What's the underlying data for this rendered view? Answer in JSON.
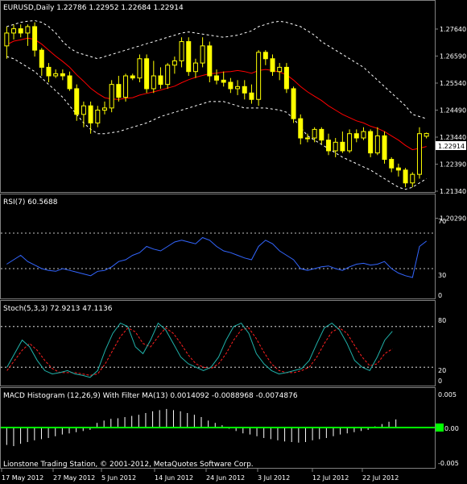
{
  "price_panel": {
    "title": "EURUSD,Daily  1.22786 1.22952 1.22684 1.22914",
    "current_price": "1.22914",
    "price_labels": [
      "1.27640",
      "1.26590",
      "1.25540",
      "1.24490",
      "1.23440",
      "1.22390",
      "1.21340",
      "1.20290"
    ]
  },
  "rsi_panel": {
    "title": "RSI(7) 60.5688",
    "levels": [
      "70",
      "30",
      "0"
    ]
  },
  "stoch_panel": {
    "title": "Stoch(5,3,3) 72.9213 47.1136",
    "levels": [
      "80",
      "20",
      "0"
    ]
  },
  "macd_panel": {
    "title": "MACD Histogram (12,26,9) With Filter MA(13) 0.0014092 -0.0088968 -0.0074876",
    "levels": [
      "0.005",
      "0.00",
      "-0.005"
    ],
    "footer": "Lionstone Trading Station, © 2001-2012, MetaQuotes Software Corp."
  },
  "date_labels": [
    "17 May 2012",
    "27 May 2012",
    "5 Jun 2012",
    "14 Jun 2012",
    "24 Jun 2012",
    "3 Jul 2012",
    "12 Jul 2012",
    "22 Jul 2012"
  ],
  "colors": {
    "bull": "#ffff00",
    "bear": "#ffff00",
    "ma": "#ff0000",
    "bands": "#ffffff",
    "rsi": "#3366ff",
    "stoch_main": "#20b2aa",
    "stoch_signal": "#ff2020",
    "macd_hist": "#ffffff",
    "macd_signal": "#00ff00"
  },
  "chart_data": [
    {
      "type": "candlestick",
      "title": "EURUSD,Daily  1.22786 1.22952 1.22684 1.22914",
      "ylim": [
        1.2029,
        1.2869
      ],
      "candles": [
        {
          "o": 1.27,
          "h": 1.279,
          "l": 1.264,
          "c": 1.276
        },
        {
          "o": 1.276,
          "h": 1.28,
          "l": 1.273,
          "c": 1.278
        },
        {
          "o": 1.278,
          "h": 1.28,
          "l": 1.274,
          "c": 1.276
        },
        {
          "o": 1.276,
          "h": 1.28,
          "l": 1.27,
          "c": 1.279
        },
        {
          "o": 1.279,
          "h": 1.281,
          "l": 1.265,
          "c": 1.268
        },
        {
          "o": 1.268,
          "h": 1.269,
          "l": 1.256,
          "c": 1.26
        },
        {
          "o": 1.26,
          "h": 1.262,
          "l": 1.253,
          "c": 1.256
        },
        {
          "o": 1.256,
          "h": 1.259,
          "l": 1.255,
          "c": 1.257
        },
        {
          "o": 1.257,
          "h": 1.259,
          "l": 1.254,
          "c": 1.256
        },
        {
          "o": 1.256,
          "h": 1.258,
          "l": 1.249,
          "c": 1.25
        },
        {
          "o": 1.25,
          "h": 1.252,
          "l": 1.235,
          "c": 1.238
        },
        {
          "o": 1.238,
          "h": 1.244,
          "l": 1.232,
          "c": 1.242
        },
        {
          "o": 1.242,
          "h": 1.244,
          "l": 1.229,
          "c": 1.234
        },
        {
          "o": 1.234,
          "h": 1.242,
          "l": 1.232,
          "c": 1.24
        },
        {
          "o": 1.24,
          "h": 1.244,
          "l": 1.238,
          "c": 1.241
        },
        {
          "o": 1.241,
          "h": 1.254,
          "l": 1.239,
          "c": 1.252
        },
        {
          "o": 1.252,
          "h": 1.256,
          "l": 1.244,
          "c": 1.246
        },
        {
          "o": 1.246,
          "h": 1.257,
          "l": 1.244,
          "c": 1.256
        },
        {
          "o": 1.256,
          "h": 1.257,
          "l": 1.254,
          "c": 1.255
        },
        {
          "o": 1.255,
          "h": 1.266,
          "l": 1.253,
          "c": 1.264
        },
        {
          "o": 1.264,
          "h": 1.266,
          "l": 1.248,
          "c": 1.25
        },
        {
          "o": 1.25,
          "h": 1.263,
          "l": 1.248,
          "c": 1.256
        },
        {
          "o": 1.256,
          "h": 1.26,
          "l": 1.25,
          "c": 1.252
        },
        {
          "o": 1.252,
          "h": 1.262,
          "l": 1.25,
          "c": 1.261
        },
        {
          "o": 1.261,
          "h": 1.265,
          "l": 1.257,
          "c": 1.263
        },
        {
          "o": 1.263,
          "h": 1.274,
          "l": 1.26,
          "c": 1.272
        },
        {
          "o": 1.272,
          "h": 1.274,
          "l": 1.256,
          "c": 1.258
        },
        {
          "o": 1.258,
          "h": 1.264,
          "l": 1.255,
          "c": 1.262
        },
        {
          "o": 1.262,
          "h": 1.274,
          "l": 1.26,
          "c": 1.27
        },
        {
          "o": 1.27,
          "h": 1.272,
          "l": 1.253,
          "c": 1.256
        },
        {
          "o": 1.256,
          "h": 1.259,
          "l": 1.252,
          "c": 1.254
        },
        {
          "o": 1.254,
          "h": 1.258,
          "l": 1.251,
          "c": 1.253
        },
        {
          "o": 1.253,
          "h": 1.255,
          "l": 1.248,
          "c": 1.25
        },
        {
          "o": 1.25,
          "h": 1.254,
          "l": 1.247,
          "c": 1.251
        },
        {
          "o": 1.251,
          "h": 1.254,
          "l": 1.245,
          "c": 1.248
        },
        {
          "o": 1.248,
          "h": 1.252,
          "l": 1.243,
          "c": 1.245
        },
        {
          "o": 1.245,
          "h": 1.268,
          "l": 1.242,
          "c": 1.267
        },
        {
          "o": 1.267,
          "h": 1.268,
          "l": 1.261,
          "c": 1.264
        },
        {
          "o": 1.264,
          "h": 1.266,
          "l": 1.256,
          "c": 1.258
        },
        {
          "o": 1.258,
          "h": 1.262,
          "l": 1.254,
          "c": 1.26
        },
        {
          "o": 1.26,
          "h": 1.262,
          "l": 1.248,
          "c": 1.25
        },
        {
          "o": 1.25,
          "h": 1.251,
          "l": 1.234,
          "c": 1.236
        },
        {
          "o": 1.236,
          "h": 1.238,
          "l": 1.224,
          "c": 1.227
        },
        {
          "o": 1.227,
          "h": 1.229,
          "l": 1.225,
          "c": 1.227
        },
        {
          "o": 1.227,
          "h": 1.232,
          "l": 1.225,
          "c": 1.231
        },
        {
          "o": 1.231,
          "h": 1.232,
          "l": 1.224,
          "c": 1.226
        },
        {
          "o": 1.226,
          "h": 1.229,
          "l": 1.219,
          "c": 1.221
        },
        {
          "o": 1.221,
          "h": 1.227,
          "l": 1.218,
          "c": 1.225
        },
        {
          "o": 1.225,
          "h": 1.23,
          "l": 1.22,
          "c": 1.221
        },
        {
          "o": 1.221,
          "h": 1.231,
          "l": 1.22,
          "c": 1.229
        },
        {
          "o": 1.229,
          "h": 1.231,
          "l": 1.225,
          "c": 1.227
        },
        {
          "o": 1.227,
          "h": 1.232,
          "l": 1.226,
          "c": 1.23
        },
        {
          "o": 1.23,
          "h": 1.231,
          "l": 1.218,
          "c": 1.22
        },
        {
          "o": 1.22,
          "h": 1.232,
          "l": 1.219,
          "c": 1.228
        },
        {
          "o": 1.228,
          "h": 1.23,
          "l": 1.215,
          "c": 1.217
        },
        {
          "o": 1.217,
          "h": 1.218,
          "l": 1.211,
          "c": 1.213
        },
        {
          "o": 1.213,
          "h": 1.215,
          "l": 1.209,
          "c": 1.212
        },
        {
          "o": 1.212,
          "h": 1.213,
          "l": 1.204,
          "c": 1.206
        },
        {
          "o": 1.206,
          "h": 1.211,
          "l": 1.204,
          "c": 1.21
        },
        {
          "o": 1.21,
          "h": 1.232,
          "l": 1.208,
          "c": 1.229
        },
        {
          "o": 1.2278,
          "h": 1.2295,
          "l": 1.2268,
          "c": 1.2291
        }
      ],
      "ma": [
        1.2705,
        1.2722,
        1.2728,
        1.2736,
        1.273,
        1.2708,
        1.268,
        1.2652,
        1.2627,
        1.26,
        1.2565,
        1.2535,
        1.2502,
        1.2478,
        1.2458,
        1.2452,
        1.245,
        1.2455,
        1.2458,
        1.247,
        1.2478,
        1.2485,
        1.2494,
        1.2503,
        1.2512,
        1.2528,
        1.2542,
        1.2553,
        1.2562,
        1.257,
        1.2572,
        1.2578,
        1.258,
        1.2585,
        1.258,
        1.2572,
        1.2585,
        1.259,
        1.2585,
        1.2578,
        1.2565,
        1.254,
        1.251,
        1.2485,
        1.2465,
        1.2445,
        1.242,
        1.24,
        1.238,
        1.2365,
        1.235,
        1.234,
        1.2325,
        1.2315,
        1.23,
        1.228,
        1.226,
        1.2235,
        1.2215,
        1.2222,
        1.223
      ],
      "upper_band": [
        1.279,
        1.28,
        1.281,
        1.2815,
        1.2818,
        1.281,
        1.279,
        1.276,
        1.272,
        1.269,
        1.267,
        1.266,
        1.265,
        1.264,
        1.265,
        1.266,
        1.267,
        1.268,
        1.269,
        1.27,
        1.271,
        1.272,
        1.273,
        1.274,
        1.275,
        1.276,
        1.2765,
        1.276,
        1.2755,
        1.275,
        1.2745,
        1.274,
        1.2745,
        1.275,
        1.276,
        1.277,
        1.279,
        1.28,
        1.281,
        1.2815,
        1.281,
        1.28,
        1.279,
        1.277,
        1.275,
        1.272,
        1.27,
        1.268,
        1.266,
        1.264,
        1.262,
        1.26,
        1.257,
        1.254,
        1.251,
        1.248,
        1.245,
        1.242,
        1.238,
        1.237,
        1.236
      ],
      "lower_band": [
        1.265,
        1.264,
        1.262,
        1.26,
        1.258,
        1.255,
        1.252,
        1.249,
        1.246,
        1.242,
        1.238,
        1.234,
        1.231,
        1.229,
        1.229,
        1.2295,
        1.23,
        1.231,
        1.232,
        1.233,
        1.234,
        1.2355,
        1.237,
        1.238,
        1.239,
        1.24,
        1.241,
        1.242,
        1.243,
        1.244,
        1.244,
        1.244,
        1.243,
        1.242,
        1.241,
        1.241,
        1.241,
        1.241,
        1.2405,
        1.24,
        1.239,
        1.236,
        1.232,
        1.228,
        1.226,
        1.224,
        1.222,
        1.22,
        1.218,
        1.2165,
        1.215,
        1.2135,
        1.212,
        1.21,
        1.208,
        1.206,
        1.204,
        1.203,
        1.204,
        1.206,
        1.208
      ]
    },
    {
      "type": "line",
      "title": "RSI(7) 60.5688",
      "ylim": [
        0,
        100
      ],
      "values": [
        35,
        40,
        45,
        38,
        34,
        30,
        28,
        27,
        30,
        28,
        26,
        24,
        22,
        27,
        28,
        32,
        38,
        40,
        45,
        48,
        55,
        52,
        50,
        55,
        60,
        62,
        60,
        58,
        65,
        62,
        55,
        50,
        48,
        45,
        42,
        40,
        55,
        62,
        58,
        50,
        45,
        40,
        30,
        28,
        30,
        32,
        33,
        30,
        28,
        32,
        35,
        36,
        34,
        35,
        38,
        30,
        25,
        22,
        20,
        55,
        61
      ]
    },
    {
      "type": "line",
      "title": "Stoch(5,3,3) 72.9213 47.1136",
      "ylim": [
        0,
        100
      ],
      "series": [
        {
          "values": [
            20,
            40,
            60,
            50,
            30,
            15,
            10,
            12,
            15,
            10,
            8,
            5,
            15,
            45,
            70,
            85,
            80,
            50,
            40,
            60,
            85,
            75,
            55,
            35,
            25,
            20,
            15,
            20,
            35,
            60,
            80,
            85,
            70,
            40,
            25,
            15,
            10,
            12,
            15,
            18,
            30,
            55,
            78,
            85,
            75,
            55,
            30,
            20,
            15,
            35,
            60,
            73
          ]
        },
        {
          "values": [
            15,
            30,
            45,
            55,
            45,
            30,
            18,
            12,
            12,
            12,
            10,
            8,
            10,
            25,
            45,
            65,
            78,
            72,
            55,
            50,
            65,
            78,
            70,
            55,
            38,
            25,
            20,
            18,
            25,
            40,
            60,
            75,
            78,
            62,
            42,
            25,
            15,
            12,
            12,
            15,
            20,
            35,
            55,
            72,
            78,
            70,
            52,
            35,
            22,
            25,
            40,
            47
          ]
        }
      ]
    },
    {
      "type": "bar",
      "title": "MACD Histogram (12,26,9) With Filter MA(13) 0.0014092 -0.0088968 -0.0074876",
      "ylim": [
        -0.005,
        0.005
      ],
      "values": [
        -0.003,
        -0.0032,
        -0.0028,
        -0.0025,
        -0.0022,
        -0.002,
        -0.0018,
        -0.0015,
        -0.0012,
        -0.001,
        -0.0008,
        -0.0006,
        -0.0004,
        0.0008,
        0.0012,
        0.0015,
        0.0016,
        0.0018,
        0.002,
        0.0022,
        0.0025,
        0.0028,
        0.003,
        0.0032,
        0.003,
        0.0028,
        0.0025,
        0.0022,
        0.0018,
        0.0012,
        0.0008,
        0.0004,
        -0.0002,
        -0.0006,
        -0.001,
        -0.0012,
        -0.0015,
        -0.0018,
        -0.002,
        -0.0022,
        -0.0024,
        -0.0025,
        -0.0026,
        -0.0025,
        -0.0022,
        -0.002,
        -0.0018,
        -0.0015,
        -0.0012,
        -0.001,
        -0.0008,
        -0.0006,
        -0.0004,
        0.0002,
        0.0006,
        0.001,
        0.0014
      ]
    }
  ]
}
